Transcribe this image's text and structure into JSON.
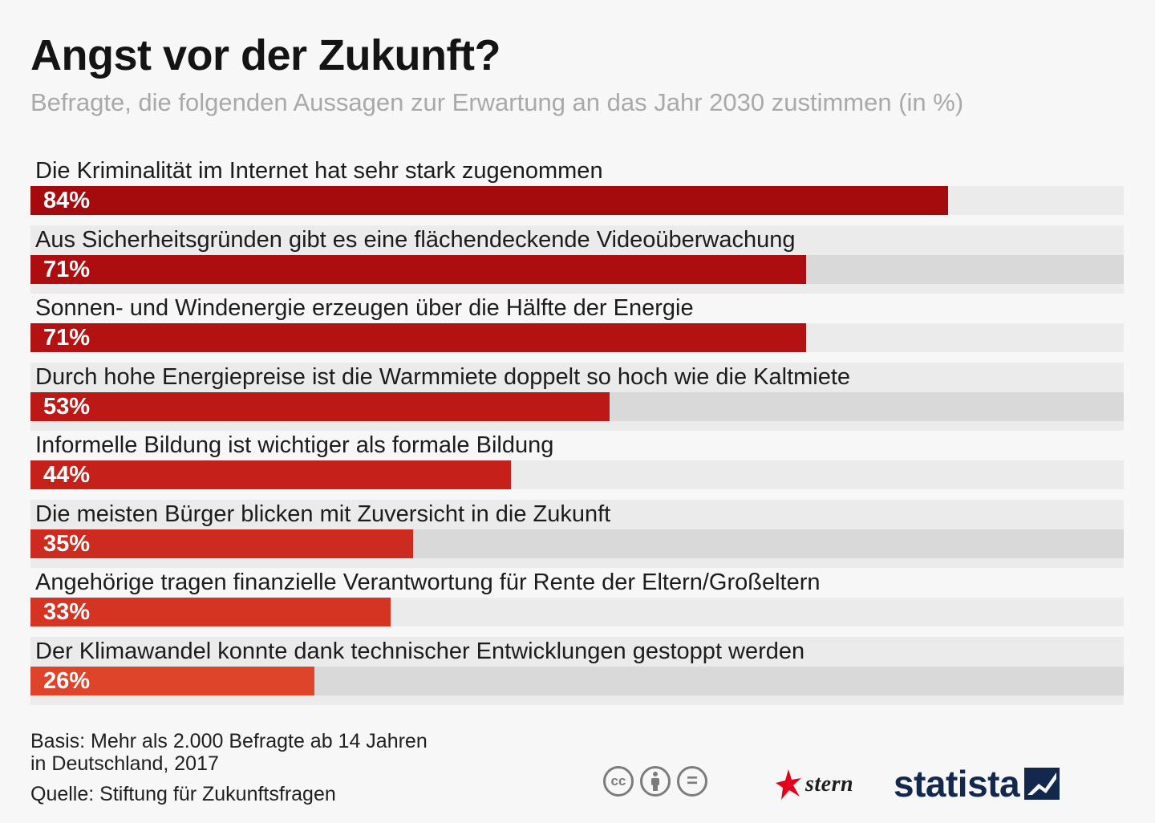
{
  "title": "Angst vor der Zukunft?",
  "subtitle": "Befragte, die folgenden Aussagen zur Erwartung an das Jahr 2030 zustimmen (in %)",
  "chart_data": {
    "type": "bar",
    "orientation": "horizontal",
    "title": "Angst vor der Zukunft?",
    "subtitle": "Befragte, die folgenden Aussagen zur Erwartung an das Jahr 2030 zustimmen (in %)",
    "categories": [
      "Die Kriminalität im Internet hat sehr stark zugenommen",
      "Aus Sicherheitsgründen gibt es eine flächendeckende Videoüberwachung",
      "Sonnen- und Windenergie erzeugen über die Hälfte der Energie",
      "Durch hohe Energiepreise ist die Warmmiete doppelt so hoch wie die Kaltmiete",
      "Informelle Bildung ist wichtiger als formale Bildung",
      "Die meisten Bürger blicken mit Zuversicht in die Zukunft",
      "Angehörige tragen finanzielle Verantwortung für Rente der Eltern/Großeltern",
      "Der Klimawandel konnte dank technischer Entwicklungen gestoppt werden"
    ],
    "values": [
      84,
      71,
      71,
      53,
      44,
      35,
      33,
      26
    ],
    "value_labels": [
      "84%",
      "71%",
      "71%",
      "53%",
      "44%",
      "35%",
      "33%",
      "26%"
    ],
    "colors": [
      "#a50a0d",
      "#ad0d0f",
      "#b41212",
      "#bc1815",
      "#c5201a",
      "#cd2b1f",
      "#d53423",
      "#de4429"
    ],
    "xlim": [
      0,
      100
    ],
    "xlabel": "",
    "ylabel": "",
    "grid": false,
    "legend": "none"
  },
  "footer": {
    "basis": "Basis: Mehr als 2.000 Befragte ab 14 Jahren\nin Deutschland, 2017",
    "source": "Quelle: Stiftung für Zukunftsfragen"
  },
  "license": {
    "cc": "cc",
    "by": "by-icon",
    "nd": "="
  },
  "logos": {
    "stern": "stern",
    "statista": "statista"
  }
}
